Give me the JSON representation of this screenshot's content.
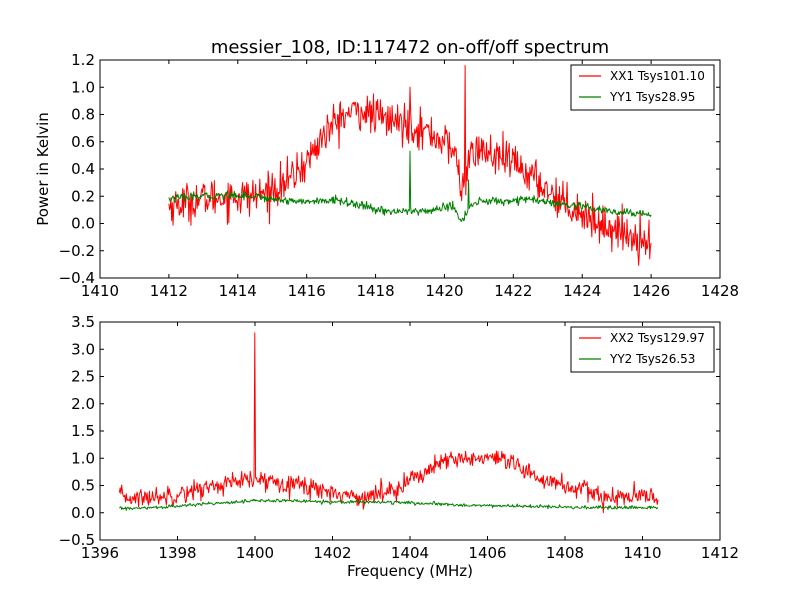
{
  "chart_data": [
    {
      "type": "line",
      "title": "messier_108, ID:117472 on-off/off spectrum",
      "xlabel": "",
      "ylabel": "Power in Kelvin",
      "xlim": [
        1410,
        1428
      ],
      "ylim": [
        -0.4,
        1.2
      ],
      "xticks": [
        1410,
        1412,
        1414,
        1416,
        1418,
        1420,
        1422,
        1424,
        1426,
        1428
      ],
      "yticks": [
        -0.4,
        -0.2,
        0.0,
        0.2,
        0.4,
        0.6,
        0.8,
        1.0,
        1.2
      ],
      "tick_decimals": 1,
      "legend_position": "top-right",
      "grid": false,
      "series": [
        {
          "name": "XX1 Tsys101.10",
          "color": "#ff0000",
          "noise": 0.07,
          "x": [
            1412.0,
            1413.0,
            1414.0,
            1414.5,
            1415.0,
            1415.5,
            1416.0,
            1416.5,
            1417.0,
            1417.5,
            1418.0,
            1418.5,
            1419.0,
            1419.5,
            1420.0,
            1420.3,
            1420.5,
            1420.7,
            1421.0,
            1421.5,
            1422.0,
            1422.5,
            1423.0,
            1423.5,
            1424.0,
            1424.5,
            1425.0,
            1425.5,
            1426.0
          ],
          "y": [
            0.13,
            0.18,
            0.2,
            0.2,
            0.25,
            0.32,
            0.45,
            0.65,
            0.78,
            0.83,
            0.79,
            0.75,
            0.73,
            0.67,
            0.6,
            0.52,
            0.25,
            0.45,
            0.55,
            0.48,
            0.45,
            0.35,
            0.25,
            0.15,
            0.08,
            0.0,
            -0.05,
            -0.1,
            -0.12
          ],
          "spikes": [
            {
              "x": 1419.0,
              "y": 1.0
            },
            {
              "x": 1420.6,
              "y": 1.16
            }
          ]
        },
        {
          "name": "YY1 Tsys28.95",
          "color": "#008000",
          "noise": 0.015,
          "x": [
            1412.0,
            1413.0,
            1414.0,
            1414.5,
            1415.0,
            1416.0,
            1417.0,
            1418.0,
            1418.5,
            1419.0,
            1419.5,
            1420.0,
            1420.3,
            1420.5,
            1420.7,
            1421.0,
            1422.0,
            1422.5,
            1423.0,
            1424.0,
            1425.0,
            1426.0
          ],
          "y": [
            0.18,
            0.2,
            0.21,
            0.2,
            0.18,
            0.16,
            0.17,
            0.1,
            0.09,
            0.09,
            0.09,
            0.12,
            0.12,
            0.0,
            0.12,
            0.16,
            0.17,
            0.18,
            0.15,
            0.12,
            0.08,
            0.07
          ],
          "spikes": [
            {
              "x": 1419.0,
              "y": 0.53
            },
            {
              "x": 1420.7,
              "y": 0.32
            }
          ]
        }
      ]
    },
    {
      "type": "line",
      "title": "",
      "xlabel": "Frequency (MHz)",
      "ylabel": "",
      "xlim": [
        1396,
        1412
      ],
      "ylim": [
        -0.5,
        3.5
      ],
      "xticks": [
        1396,
        1398,
        1400,
        1402,
        1404,
        1406,
        1408,
        1410,
        1412
      ],
      "yticks": [
        -0.5,
        0.0,
        0.5,
        1.0,
        1.5,
        2.0,
        2.5,
        3.0,
        3.5
      ],
      "tick_decimals": 1,
      "legend_position": "top-right",
      "grid": false,
      "series": [
        {
          "name": "XX2 Tsys129.97",
          "color": "#ff0000",
          "noise": 0.09,
          "x": [
            1396.5,
            1397.0,
            1397.5,
            1398.0,
            1398.5,
            1399.0,
            1399.5,
            1400.0,
            1400.5,
            1401.0,
            1401.5,
            1402.0,
            1402.5,
            1403.0,
            1403.5,
            1404.0,
            1404.5,
            1405.0,
            1405.5,
            1406.0,
            1406.5,
            1407.0,
            1407.5,
            1408.0,
            1408.5,
            1409.0,
            1409.5,
            1410.0,
            1410.4
          ],
          "y": [
            0.3,
            0.27,
            0.3,
            0.35,
            0.42,
            0.5,
            0.56,
            0.6,
            0.58,
            0.55,
            0.45,
            0.38,
            0.3,
            0.3,
            0.42,
            0.6,
            0.8,
            0.95,
            1.0,
            1.0,
            0.92,
            0.75,
            0.6,
            0.5,
            0.4,
            0.3,
            0.28,
            0.28,
            0.3
          ],
          "spikes": [
            {
              "x": 1400.0,
              "y": 3.3
            },
            {
              "x": 1409.0,
              "y": 0.0
            }
          ]
        },
        {
          "name": "YY2 Tsys26.53",
          "color": "#008000",
          "noise": 0.015,
          "x": [
            1396.5,
            1397.0,
            1398.0,
            1399.0,
            1400.0,
            1401.0,
            1402.0,
            1403.0,
            1404.0,
            1405.0,
            1406.0,
            1407.0,
            1408.0,
            1409.0,
            1410.0,
            1410.4
          ],
          "y": [
            0.08,
            0.08,
            0.12,
            0.18,
            0.22,
            0.22,
            0.2,
            0.2,
            0.18,
            0.15,
            0.13,
            0.12,
            0.1,
            0.09,
            0.09,
            0.1
          ],
          "spikes": []
        }
      ]
    }
  ]
}
